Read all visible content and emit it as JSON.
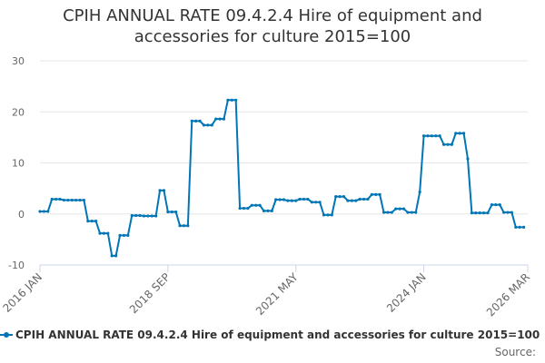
{
  "title_line1": "CPIH ANNUAL RATE 09.4.2.4 Hire of equipment and",
  "title_line2": "accessories for culture 2015=100",
  "legend_label": "CPIH ANNUAL RATE 09.4.2.4 Hire of equipment and accessories for culture 2015=100",
  "source_label": "Source:",
  "colors": {
    "series": "#0076b6",
    "grid": "#e6e6e6",
    "text": "#333333"
  },
  "chart_data": {
    "type": "line",
    "title": "CPIH ANNUAL RATE 09.4.2.4 Hire of equipment and accessories for culture 2015=100",
    "ylim": [
      -10,
      30
    ],
    "yticks": [
      -10,
      0,
      10,
      20,
      30
    ],
    "x_start": "2016 JAN",
    "x_end": "2026 MAR",
    "x_ticks": [
      "2016 JAN",
      "2018 SEP",
      "2021 MAY",
      "2024 JAN",
      "2026 MAR"
    ],
    "grid": "horizontal",
    "legend_position": "bottom",
    "series": [
      {
        "name": "CPIH ANNUAL RATE 09.4.2.4 Hire of equipment and accessories for culture 2015=100",
        "values": [
          0.5,
          0.5,
          0.5,
          2.9,
          2.9,
          2.9,
          2.7,
          2.7,
          2.7,
          2.7,
          2.7,
          2.7,
          -1.4,
          -1.4,
          -1.4,
          -3.8,
          -3.8,
          -3.8,
          -8.2,
          -8.2,
          -4.2,
          -4.2,
          -4.2,
          -0.3,
          -0.3,
          -0.3,
          -0.4,
          -0.4,
          -0.4,
          -0.4,
          4.6,
          4.6,
          0.4,
          0.4,
          0.4,
          -2.3,
          -2.3,
          -2.3,
          18.2,
          18.2,
          18.2,
          17.4,
          17.4,
          17.4,
          18.6,
          18.6,
          18.6,
          22.3,
          22.3,
          22.3,
          1.1,
          1.1,
          1.1,
          1.7,
          1.7,
          1.7,
          0.6,
          0.6,
          0.6,
          2.8,
          2.8,
          2.8,
          2.6,
          2.6,
          2.6,
          2.9,
          2.9,
          2.9,
          2.3,
          2.3,
          2.3,
          -0.2,
          -0.2,
          -0.2,
          3.4,
          3.4,
          3.4,
          2.6,
          2.6,
          2.6,
          2.9,
          2.9,
          2.9,
          3.8,
          3.8,
          3.8,
          0.3,
          0.3,
          0.3,
          1.0,
          1.0,
          1.0,
          0.3,
          0.3,
          0.3,
          4.3,
          15.3,
          15.3,
          15.3,
          15.3,
          15.3,
          13.6,
          13.6,
          13.6,
          15.8,
          15.8,
          15.8,
          10.8,
          0.2,
          0.2,
          0.2,
          0.2,
          0.2,
          1.8,
          1.8,
          1.8,
          0.3,
          0.3,
          0.3,
          -2.6,
          -2.6,
          -2.6
        ]
      }
    ]
  }
}
